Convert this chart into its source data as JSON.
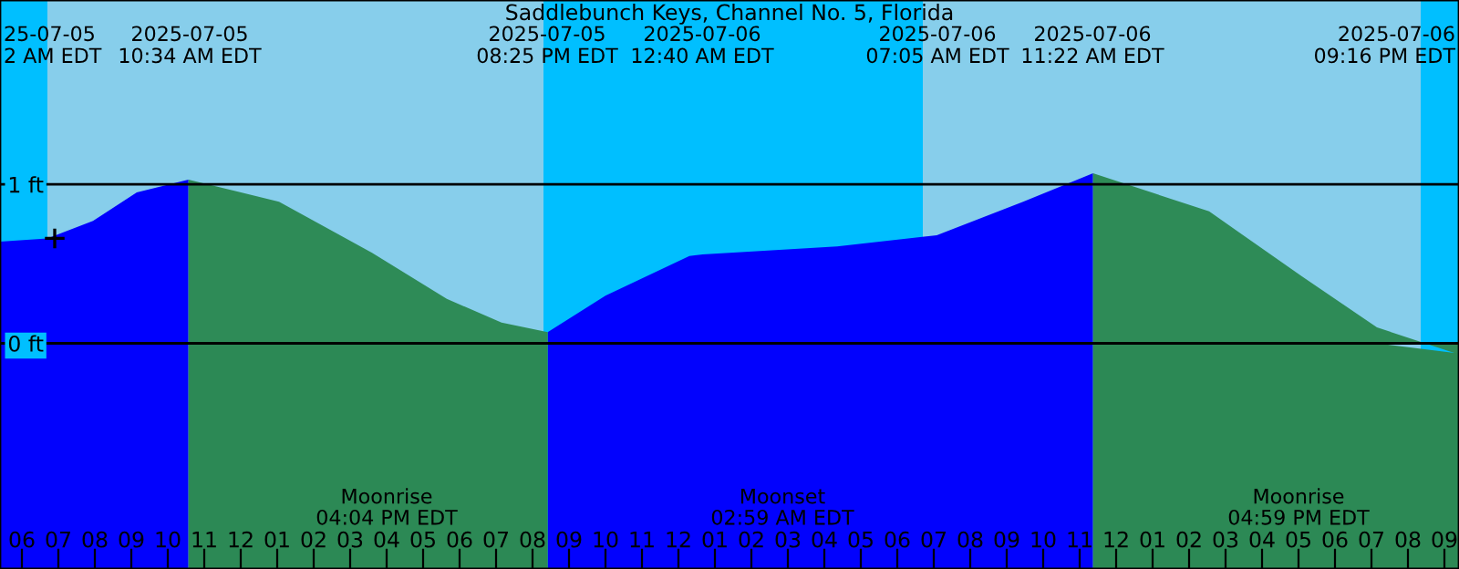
{
  "chart_data": {
    "type": "area",
    "title": "Saddlebunch Keys, Channel No. 5, Florida",
    "x": [
      "2025-07-05T05:24",
      "2025-07-05T06:42",
      "2025-07-05T07:57",
      "2025-07-05T09:09",
      "2025-07-05T10:34",
      "2025-07-05T13:03",
      "2025-07-05T15:36",
      "2025-07-05T17:39",
      "2025-07-05T19:09",
      "2025-07-05T20:25",
      "2025-07-05T22:00",
      "2025-07-06T00:18",
      "2025-07-06T00:40",
      "2025-07-06T04:21",
      "2025-07-06T07:05",
      "2025-07-06T09:27",
      "2025-07-06T11:22",
      "2025-07-06T14:33",
      "2025-07-06T17:06",
      "2025-07-06T19:09",
      "2025-07-06T21:16",
      "2025-07-06T21:24"
    ],
    "series": [
      {
        "color": "#0000ff",
        "values": [
          0.64,
          0.66,
          0.77,
          0.95,
          1.03,
          null,
          null,
          null,
          null,
          0.07,
          0.3,
          0.55,
          0.56,
          0.61,
          0.68,
          0.89,
          1.07,
          null,
          null,
          null,
          null,
          null
        ]
      },
      {
        "color": "#2e8b57",
        "values": [
          null,
          null,
          null,
          null,
          1.03,
          0.89,
          0.57,
          0.28,
          0.13,
          0.07,
          null,
          null,
          null,
          null,
          null,
          null,
          1.07,
          0.83,
          0.42,
          0.1,
          -0.06,
          -0.06
        ]
      },
      {
        "type": "scatter",
        "x": [
          "2025-07-05T06:54"
        ],
        "values": [
          0.66
        ],
        "color": "#000000",
        "marker": "cross"
      }
    ],
    "xlim": [
      "2025-07-05T05:24",
      "2025-07-06T21:24"
    ],
    "xticks": [
      {
        "value": "2025-07-05T06:00",
        "label": "06"
      },
      {
        "value": "2025-07-05T07:00",
        "label": "07"
      },
      {
        "value": "2025-07-05T08:00",
        "label": "08"
      },
      {
        "value": "2025-07-05T09:00",
        "label": "09"
      },
      {
        "value": "2025-07-05T10:00",
        "label": "10"
      },
      {
        "value": "2025-07-05T11:00",
        "label": "11"
      },
      {
        "value": "2025-07-05T12:00",
        "label": "12"
      },
      {
        "value": "2025-07-05T13:00",
        "label": "01"
      },
      {
        "value": "2025-07-05T14:00",
        "label": "02"
      },
      {
        "value": "2025-07-05T15:00",
        "label": "03"
      },
      {
        "value": "2025-07-05T16:00",
        "label": "04"
      },
      {
        "value": "2025-07-05T17:00",
        "label": "05"
      },
      {
        "value": "2025-07-05T18:00",
        "label": "06"
      },
      {
        "value": "2025-07-05T19:00",
        "label": "07"
      },
      {
        "value": "2025-07-05T20:00",
        "label": "08"
      },
      {
        "value": "2025-07-05T21:00",
        "label": "09"
      },
      {
        "value": "2025-07-05T22:00",
        "label": "10"
      },
      {
        "value": "2025-07-05T23:00",
        "label": "11"
      },
      {
        "value": "2025-07-06T00:00",
        "label": "12"
      },
      {
        "value": "2025-07-06T01:00",
        "label": "01"
      },
      {
        "value": "2025-07-06T02:00",
        "label": "02"
      },
      {
        "value": "2025-07-06T03:00",
        "label": "03"
      },
      {
        "value": "2025-07-06T04:00",
        "label": "04"
      },
      {
        "value": "2025-07-06T05:00",
        "label": "05"
      },
      {
        "value": "2025-07-06T06:00",
        "label": "06"
      },
      {
        "value": "2025-07-06T07:00",
        "label": "07"
      },
      {
        "value": "2025-07-06T08:00",
        "label": "08"
      },
      {
        "value": "2025-07-06T09:00",
        "label": "09"
      },
      {
        "value": "2025-07-06T10:00",
        "label": "10"
      },
      {
        "value": "2025-07-06T11:00",
        "label": "11"
      },
      {
        "value": "2025-07-06T12:00",
        "label": "12"
      },
      {
        "value": "2025-07-06T13:00",
        "label": "01"
      },
      {
        "value": "2025-07-06T14:00",
        "label": "02"
      },
      {
        "value": "2025-07-06T15:00",
        "label": "03"
      },
      {
        "value": "2025-07-06T16:00",
        "label": "04"
      },
      {
        "value": "2025-07-06T17:00",
        "label": "05"
      },
      {
        "value": "2025-07-06T18:00",
        "label": "06"
      },
      {
        "value": "2025-07-06T19:00",
        "label": "07"
      },
      {
        "value": "2025-07-06T20:00",
        "label": "08"
      },
      {
        "value": "2025-07-06T21:00",
        "label": "09"
      }
    ],
    "ylim": [
      -1.42,
      2.16
    ],
    "yticks": [
      {
        "value": 1,
        "label": "1 ft"
      },
      {
        "value": 0,
        "label": "0 ft"
      }
    ],
    "grid": "y",
    "bands": [
      {
        "axis": "x",
        "from": "2025-07-05T05:24",
        "to": "2025-07-05T06:42",
        "color": "#00bfff"
      },
      {
        "axis": "x",
        "from": "2025-07-05T06:42",
        "to": "2025-07-05T20:18",
        "color": "#87ceeb"
      },
      {
        "axis": "x",
        "from": "2025-07-05T20:18",
        "to": "2025-07-06T06:42",
        "color": "#00bfff"
      },
      {
        "axis": "x",
        "from": "2025-07-06T06:42",
        "to": "2025-07-06T20:21",
        "color": "#87ceeb"
      },
      {
        "axis": "x",
        "from": "2025-07-06T20:21",
        "to": "2025-07-06T21:24",
        "color": "#00bfff"
      }
    ],
    "annotations": [
      "25-07-05\n2 AM EDT",
      "2025-07-05\n10:34 AM EDT",
      "2025-07-05\n08:25 PM EDT",
      "2025-07-06\n12:40 AM EDT",
      "2025-07-06\n07:05 AM EDT",
      "2025-07-06\n11:22 AM EDT",
      "2025-07-06\n09:16 PM EDT",
      "Moonrise\n04:04 PM EDT",
      "Moonset\n02:59 AM EDT",
      "Moonrise\n04:59 PM EDT"
    ]
  }
}
